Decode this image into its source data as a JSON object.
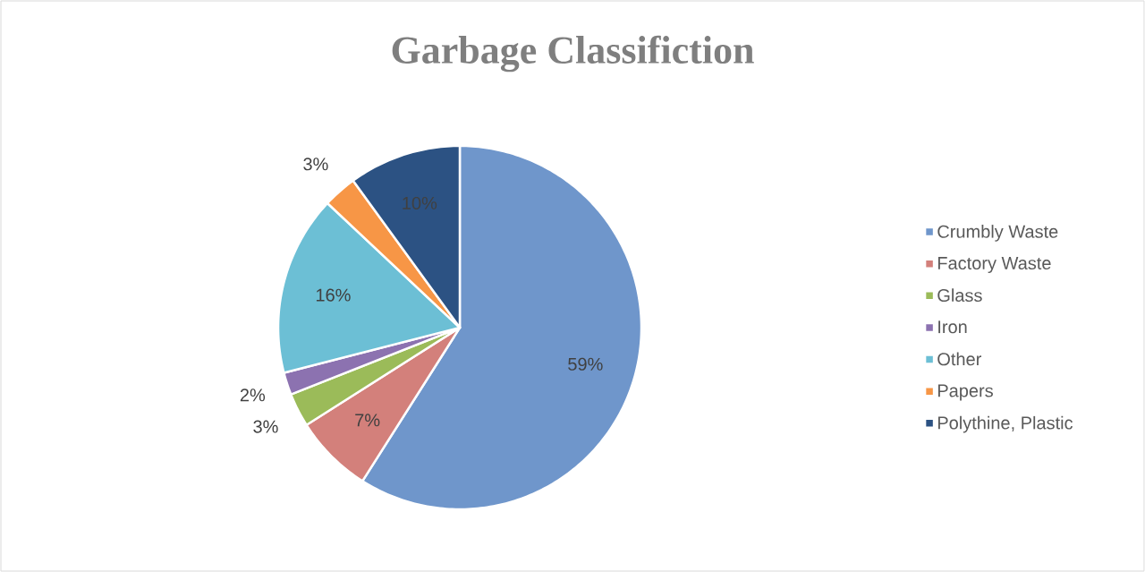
{
  "chart_data": {
    "type": "pie",
    "title": "Garbage Classifiction",
    "categories": [
      "Crumbly Waste",
      "Factory Waste",
      "Glass",
      "Iron",
      "Other",
      "Papers",
      "Polythine, Plastic"
    ],
    "values": [
      59,
      7,
      3,
      2,
      16,
      3,
      10
    ],
    "value_labels": [
      "59%",
      "7%",
      "3%",
      "2%",
      "16%",
      "3%",
      "10%"
    ],
    "colors": [
      "#6f96cb",
      "#d3807b",
      "#9bbb59",
      "#8c72b0",
      "#6cbfd5",
      "#f79646",
      "#2c5283"
    ],
    "legend": "right"
  }
}
